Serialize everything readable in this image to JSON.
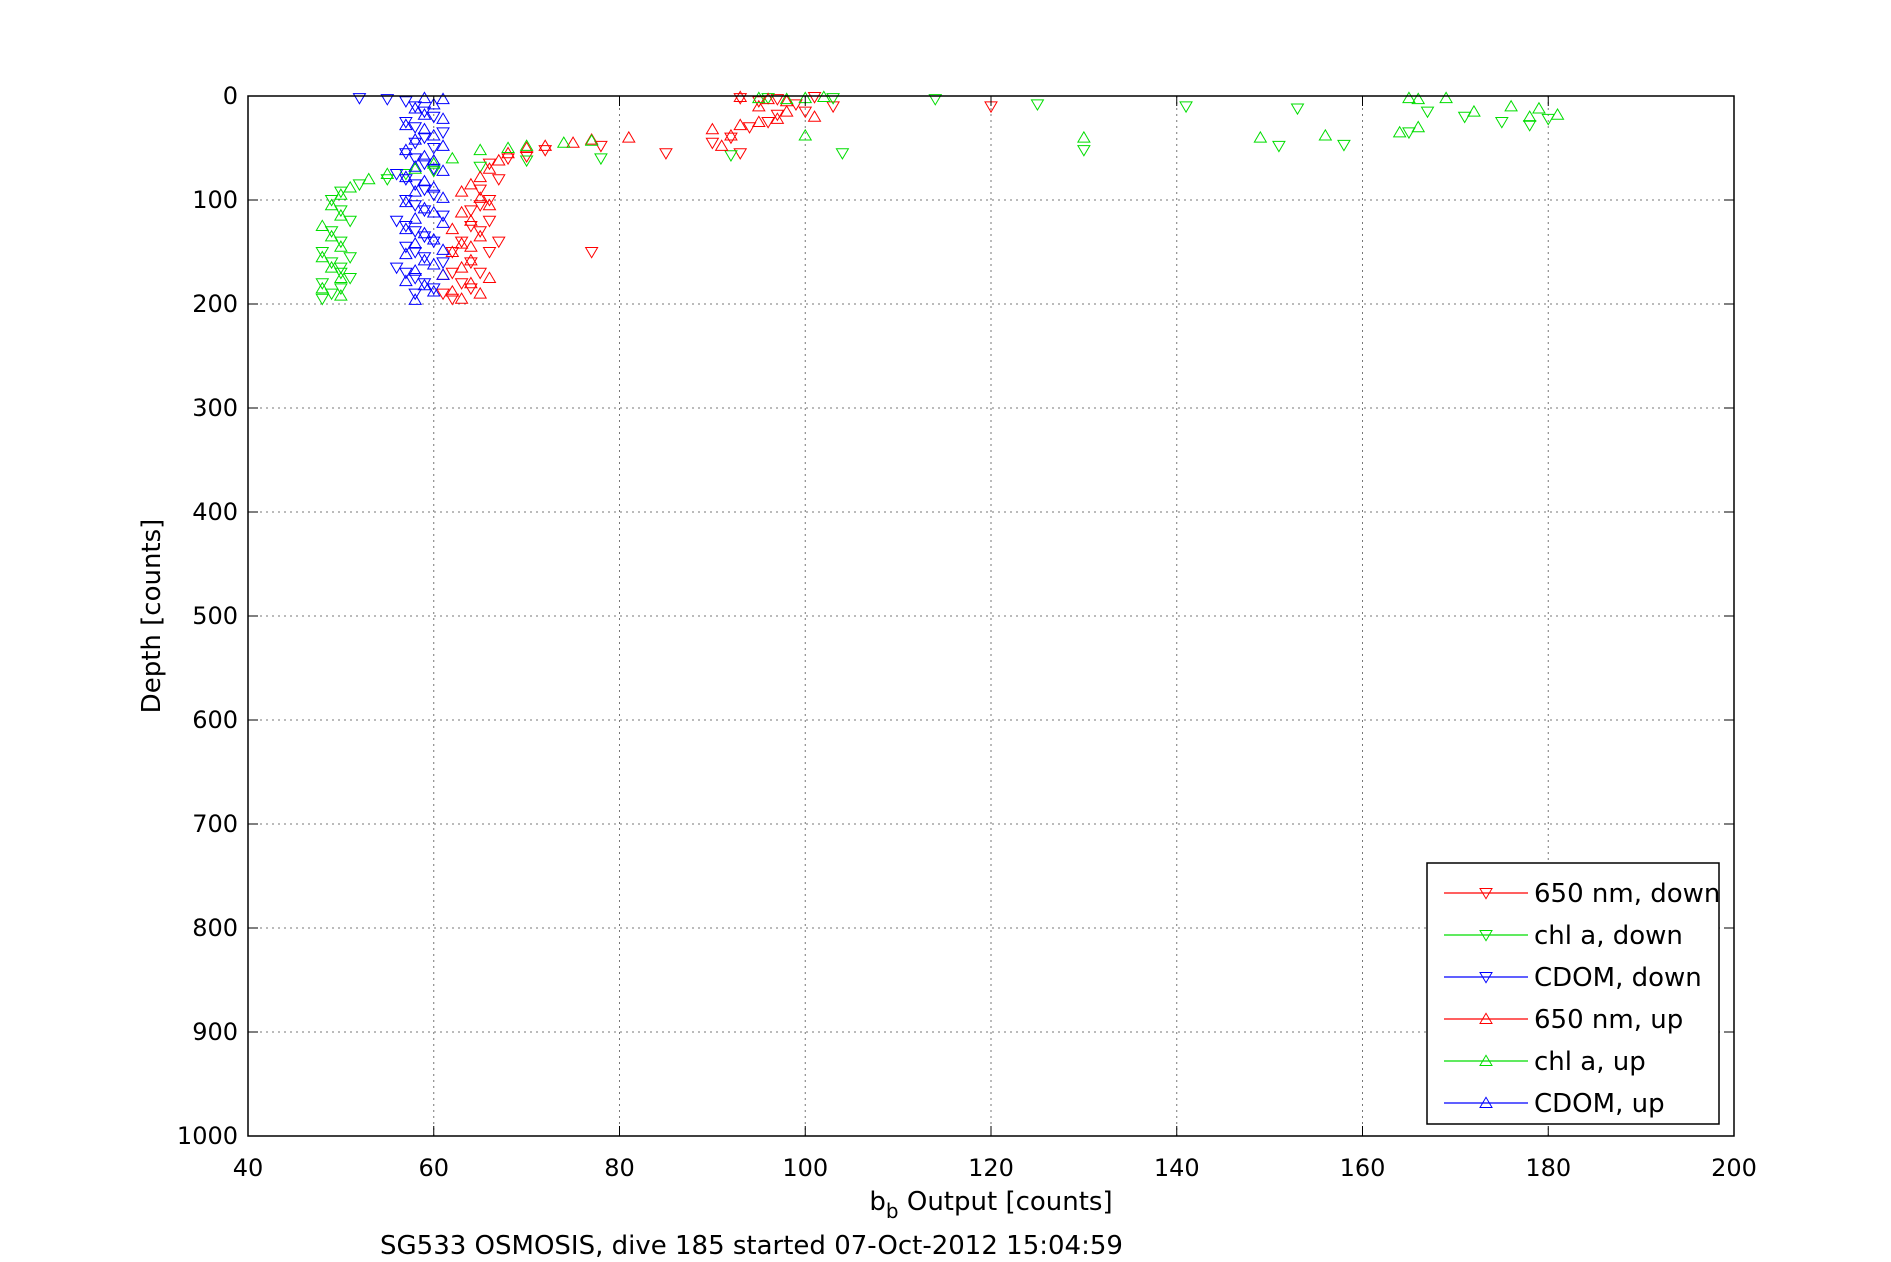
{
  "chart_data": {
    "type": "scatter",
    "xlabel_base": "b",
    "xlabel_sub": "b",
    "xlabel_rest": " Output [counts]",
    "ylabel": "Depth [counts]",
    "caption": "SG533 OSMOSIS, dive 185 started 07-Oct-2012 15:04:59",
    "xlim": [
      40,
      200
    ],
    "ylim": [
      0,
      1000
    ],
    "y_reversed": true,
    "xticks": [
      "40",
      "60",
      "80",
      "100",
      "120",
      "140",
      "160",
      "180",
      "200"
    ],
    "yticks": [
      "0",
      "100",
      "200",
      "300",
      "400",
      "500",
      "600",
      "700",
      "800",
      "900",
      "1000"
    ],
    "grid": true,
    "legend_position": "bottom-right",
    "series": [
      {
        "name": "650 nm, down",
        "color": "#ff0000",
        "marker": "triangle-down",
        "points": [
          [
            93,
            2
          ],
          [
            95,
            5
          ],
          [
            97,
            3
          ],
          [
            101,
            1
          ],
          [
            99,
            8
          ],
          [
            103,
            10
          ],
          [
            97,
            18
          ],
          [
            100,
            15
          ],
          [
            96,
            25
          ],
          [
            94,
            30
          ],
          [
            92,
            40
          ],
          [
            90,
            45
          ],
          [
            93,
            55
          ],
          [
            120,
            10
          ],
          [
            85,
            55
          ],
          [
            77,
            150
          ],
          [
            78,
            48
          ],
          [
            72,
            52
          ],
          [
            70,
            58
          ],
          [
            68,
            60
          ],
          [
            66,
            65
          ],
          [
            67,
            80
          ],
          [
            65,
            90
          ],
          [
            66,
            100
          ],
          [
            64,
            110
          ],
          [
            66,
            120
          ],
          [
            65,
            130
          ],
          [
            63,
            140
          ],
          [
            62,
            150
          ],
          [
            64,
            160
          ],
          [
            62,
            170
          ],
          [
            63,
            180
          ],
          [
            61,
            190
          ],
          [
            62,
            195
          ],
          [
            64,
            185
          ],
          [
            65,
            170
          ],
          [
            66,
            150
          ],
          [
            67,
            140
          ],
          [
            64,
            125
          ],
          [
            65,
            105
          ]
        ]
      },
      {
        "name": "chl a, down",
        "color": "#00dd00",
        "marker": "triangle-down",
        "points": [
          [
            96,
            2
          ],
          [
            103,
            2
          ],
          [
            114,
            3
          ],
          [
            125,
            8
          ],
          [
            141,
            10
          ],
          [
            153,
            12
          ],
          [
            167,
            15
          ],
          [
            171,
            20
          ],
          [
            175,
            25
          ],
          [
            178,
            28
          ],
          [
            180,
            22
          ],
          [
            165,
            35
          ],
          [
            158,
            47
          ],
          [
            151,
            48
          ],
          [
            130,
            52
          ],
          [
            104,
            55
          ],
          [
            92,
            57
          ],
          [
            78,
            60
          ],
          [
            70,
            62
          ],
          [
            65,
            68
          ],
          [
            60,
            72
          ],
          [
            57,
            75
          ],
          [
            55,
            80
          ],
          [
            52,
            85
          ],
          [
            50,
            92
          ],
          [
            49,
            100
          ],
          [
            50,
            110
          ],
          [
            51,
            120
          ],
          [
            49,
            130
          ],
          [
            50,
            140
          ],
          [
            48,
            150
          ],
          [
            51,
            155
          ],
          [
            49,
            160
          ],
          [
            50,
            170
          ],
          [
            48,
            180
          ],
          [
            49,
            190
          ],
          [
            48,
            195
          ],
          [
            50,
            185
          ],
          [
            51,
            175
          ],
          [
            50,
            165
          ]
        ]
      },
      {
        "name": "CDOM, down",
        "color": "#0000ff",
        "marker": "triangle-down",
        "points": [
          [
            52,
            2
          ],
          [
            55,
            3
          ],
          [
            57,
            5
          ],
          [
            58,
            10
          ],
          [
            59,
            15
          ],
          [
            60,
            20
          ],
          [
            57,
            25
          ],
          [
            58,
            30
          ],
          [
            61,
            35
          ],
          [
            59,
            40
          ],
          [
            58,
            45
          ],
          [
            60,
            50
          ],
          [
            57,
            55
          ],
          [
            58,
            60
          ],
          [
            59,
            65
          ],
          [
            60,
            70
          ],
          [
            56,
            75
          ],
          [
            57,
            80
          ],
          [
            58,
            85
          ],
          [
            59,
            90
          ],
          [
            60,
            95
          ],
          [
            57,
            100
          ],
          [
            58,
            105
          ],
          [
            59,
            110
          ],
          [
            61,
            115
          ],
          [
            56,
            120
          ],
          [
            57,
            125
          ],
          [
            58,
            130
          ],
          [
            59,
            135
          ],
          [
            60,
            140
          ],
          [
            57,
            145
          ],
          [
            58,
            150
          ],
          [
            59,
            155
          ],
          [
            61,
            160
          ],
          [
            56,
            165
          ],
          [
            57,
            170
          ],
          [
            58,
            175
          ],
          [
            59,
            180
          ],
          [
            60,
            185
          ],
          [
            58,
            190
          ]
        ]
      },
      {
        "name": "650 nm, up",
        "color": "#ff0000",
        "marker": "triangle-up",
        "points": [
          [
            93,
            1
          ],
          [
            96,
            3
          ],
          [
            98,
            5
          ],
          [
            95,
            10
          ],
          [
            98,
            15
          ],
          [
            101,
            20
          ],
          [
            97,
            22
          ],
          [
            95,
            25
          ],
          [
            93,
            28
          ],
          [
            90,
            32
          ],
          [
            92,
            38
          ],
          [
            91,
            48
          ],
          [
            81,
            40
          ],
          [
            77,
            42
          ],
          [
            75,
            45
          ],
          [
            72,
            48
          ],
          [
            70,
            50
          ],
          [
            68,
            55
          ],
          [
            67,
            62
          ],
          [
            66,
            70
          ],
          [
            65,
            78
          ],
          [
            64,
            85
          ],
          [
            63,
            92
          ],
          [
            65,
            98
          ],
          [
            66,
            105
          ],
          [
            63,
            112
          ],
          [
            64,
            120
          ],
          [
            62,
            128
          ],
          [
            65,
            135
          ],
          [
            63,
            142
          ],
          [
            62,
            150
          ],
          [
            64,
            158
          ],
          [
            63,
            165
          ],
          [
            61,
            172
          ],
          [
            64,
            180
          ],
          [
            62,
            188
          ],
          [
            63,
            195
          ],
          [
            65,
            190
          ],
          [
            66,
            175
          ],
          [
            64,
            145
          ]
        ]
      },
      {
        "name": "chl a, up",
        "color": "#00dd00",
        "marker": "triangle-up",
        "points": [
          [
            95,
            2
          ],
          [
            98,
            3
          ],
          [
            100,
            2
          ],
          [
            102,
            1
          ],
          [
            165,
            2
          ],
          [
            166,
            3
          ],
          [
            169,
            2
          ],
          [
            172,
            15
          ],
          [
            176,
            10
          ],
          [
            179,
            12
          ],
          [
            181,
            18
          ],
          [
            178,
            20
          ],
          [
            164,
            35
          ],
          [
            166,
            30
          ],
          [
            156,
            38
          ],
          [
            149,
            40
          ],
          [
            130,
            40
          ],
          [
            100,
            38
          ],
          [
            77,
            43
          ],
          [
            74,
            45
          ],
          [
            70,
            48
          ],
          [
            68,
            50
          ],
          [
            65,
            52
          ],
          [
            62,
            60
          ],
          [
            60,
            65
          ],
          [
            58,
            70
          ],
          [
            55,
            75
          ],
          [
            53,
            80
          ],
          [
            51,
            88
          ],
          [
            50,
            95
          ],
          [
            49,
            105
          ],
          [
            50,
            115
          ],
          [
            48,
            125
          ],
          [
            49,
            135
          ],
          [
            50,
            145
          ],
          [
            48,
            155
          ],
          [
            49,
            165
          ],
          [
            50,
            175
          ],
          [
            48,
            185
          ],
          [
            50,
            192
          ]
        ]
      },
      {
        "name": "CDOM, up",
        "color": "#0000ff",
        "marker": "triangle-up",
        "points": [
          [
            59,
            2
          ],
          [
            61,
            3
          ],
          [
            60,
            8
          ],
          [
            58,
            12
          ],
          [
            59,
            18
          ],
          [
            61,
            22
          ],
          [
            57,
            28
          ],
          [
            59,
            32
          ],
          [
            60,
            38
          ],
          [
            58,
            42
          ],
          [
            61,
            48
          ],
          [
            57,
            52
          ],
          [
            59,
            58
          ],
          [
            60,
            62
          ],
          [
            58,
            68
          ],
          [
            61,
            72
          ],
          [
            57,
            78
          ],
          [
            59,
            82
          ],
          [
            60,
            88
          ],
          [
            58,
            92
          ],
          [
            61,
            98
          ],
          [
            57,
            102
          ],
          [
            59,
            108
          ],
          [
            60,
            112
          ],
          [
            58,
            118
          ],
          [
            61,
            122
          ],
          [
            57,
            128
          ],
          [
            59,
            132
          ],
          [
            60,
            138
          ],
          [
            58,
            142
          ],
          [
            61,
            148
          ],
          [
            57,
            152
          ],
          [
            59,
            158
          ],
          [
            60,
            162
          ],
          [
            58,
            168
          ],
          [
            61,
            172
          ],
          [
            57,
            178
          ],
          [
            59,
            182
          ],
          [
            60,
            188
          ],
          [
            58,
            196
          ]
        ]
      }
    ]
  }
}
